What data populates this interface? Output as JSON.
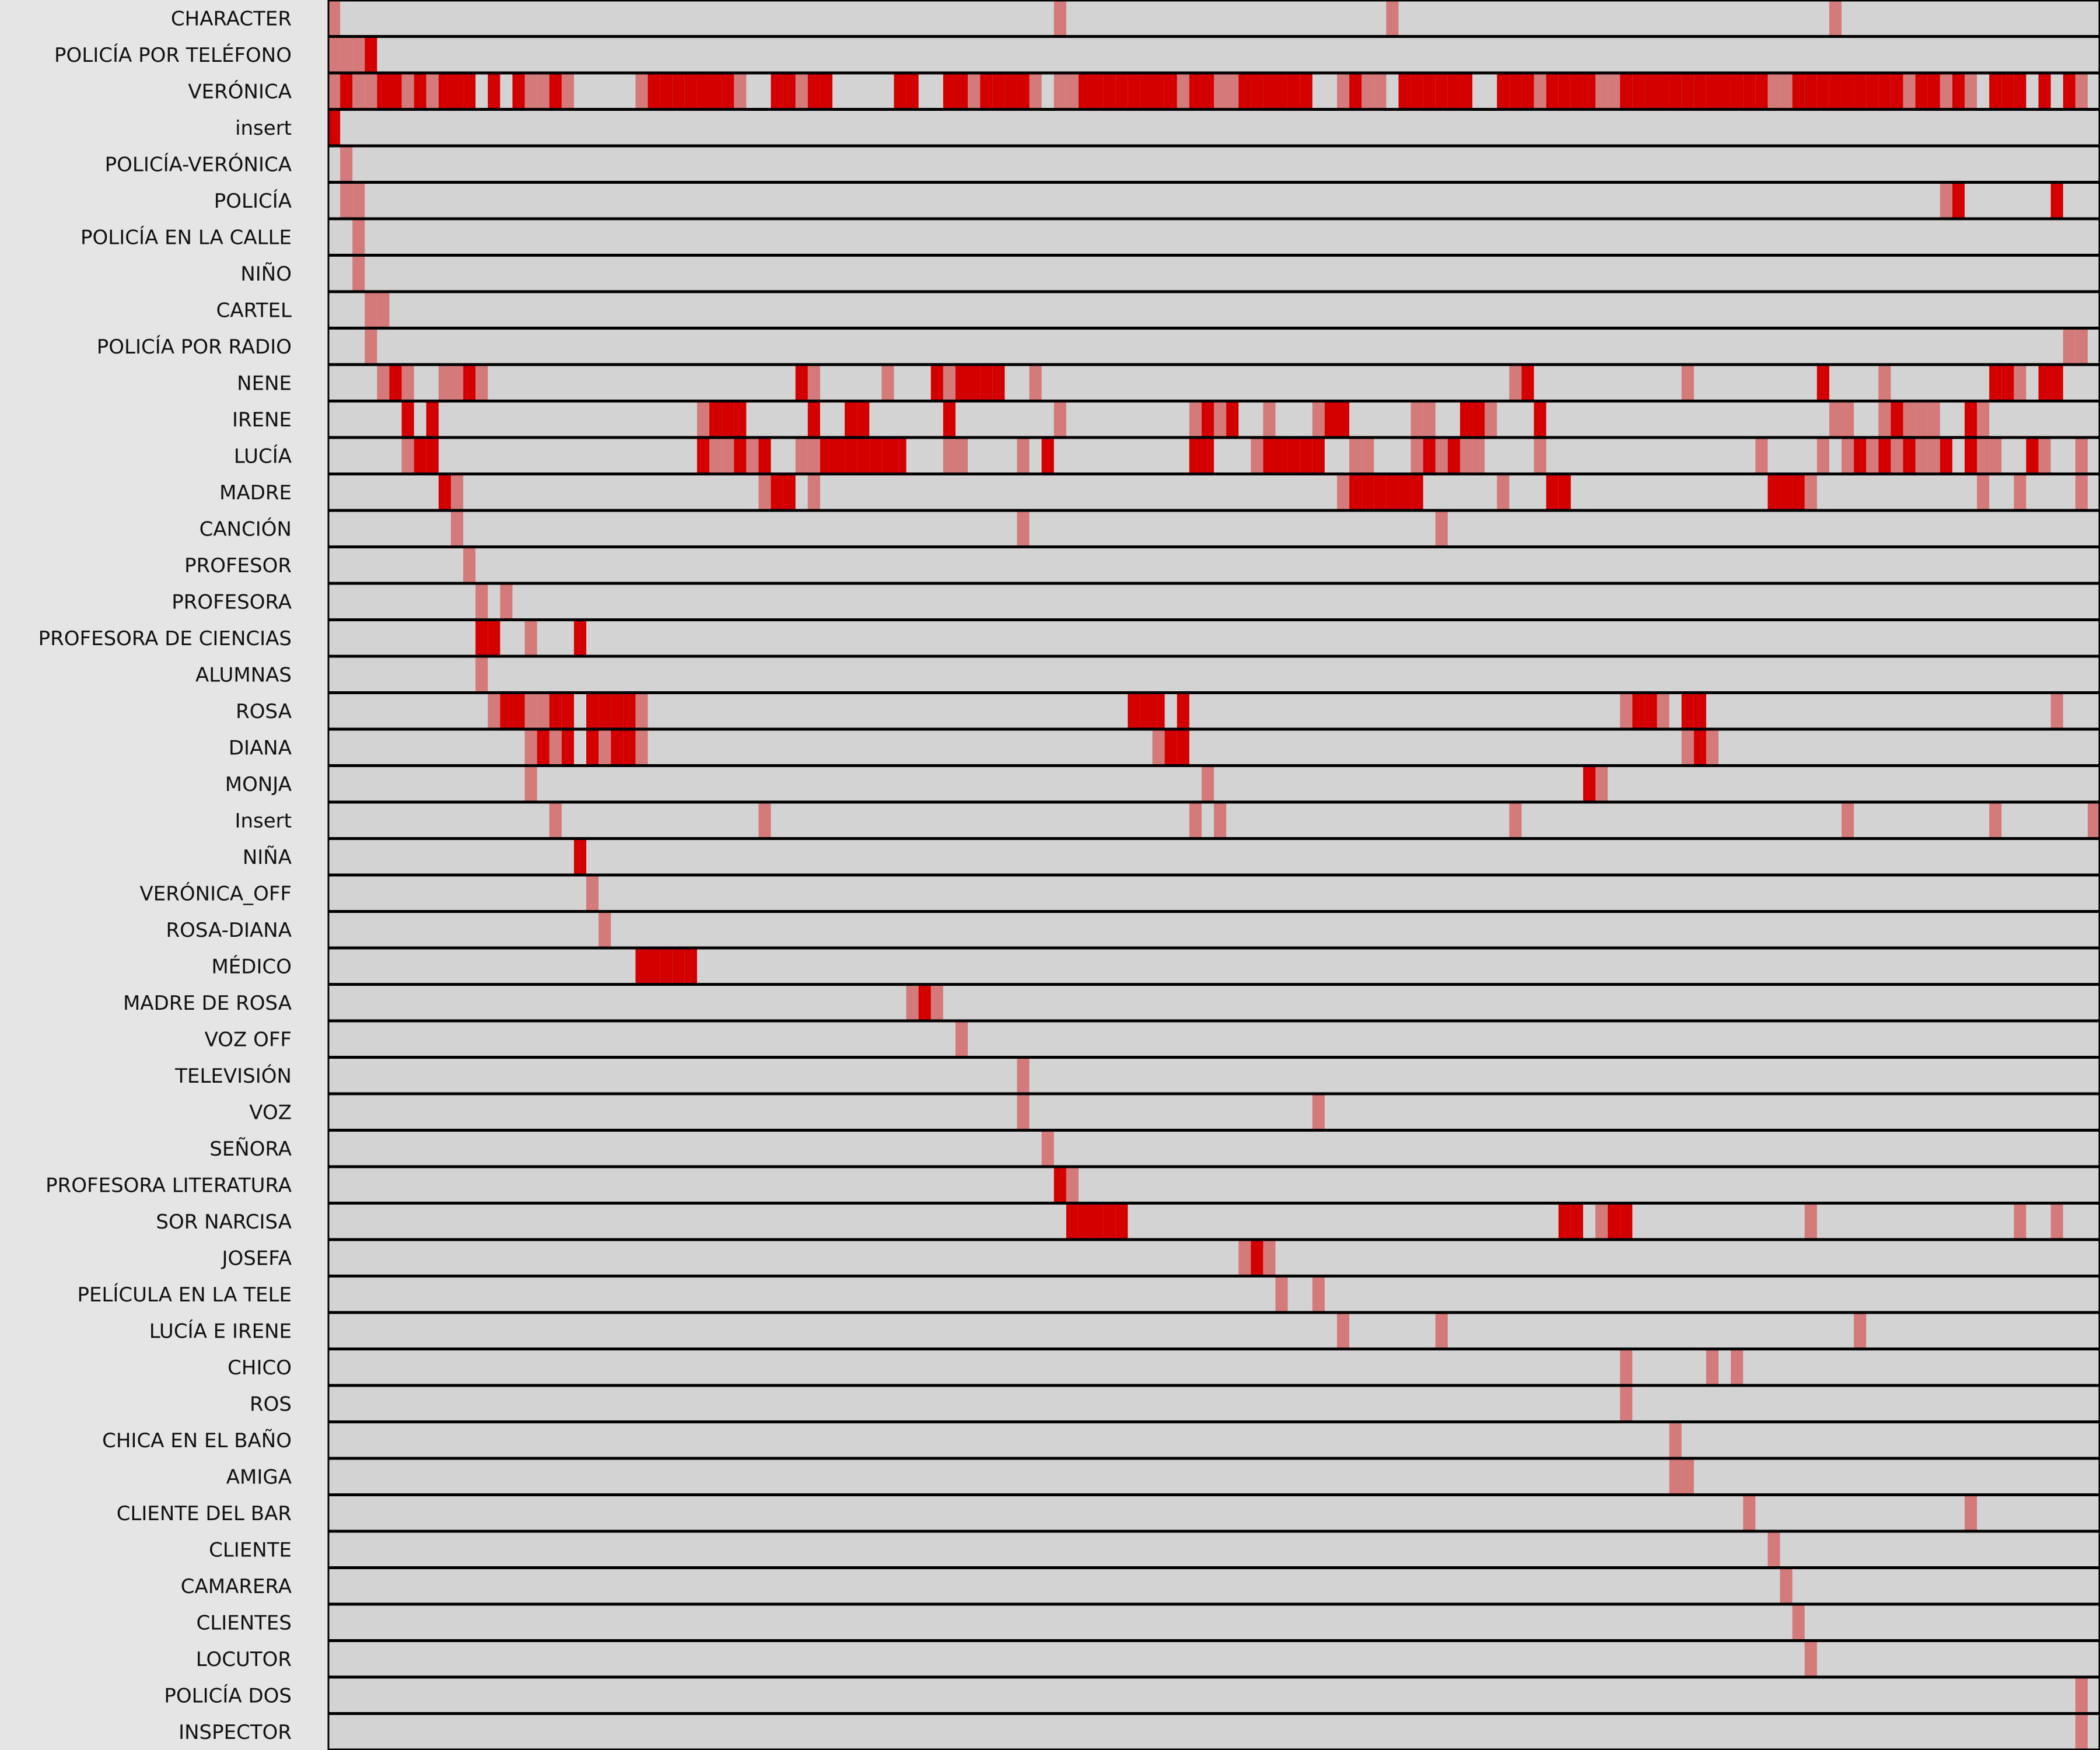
{
  "chart_data": {
    "type": "heatmap",
    "title": "",
    "xlabel": "",
    "ylabel": "",
    "xlim": [
      0,
      143
    ],
    "grid": true,
    "colors": {
      "background": "#e5e5e5",
      "track": "#d3d3d3",
      "present": "#d57a7a",
      "speaking": "#d40000",
      "border": "#000000"
    },
    "series": [
      {
        "name": "CHARACTER",
        "present": [
          0,
          59,
          86,
          122
        ],
        "speaking": []
      },
      {
        "name": "POLICÍA POR TELÉFONO",
        "present": [
          0,
          1,
          2
        ],
        "speaking": [
          3
        ]
      },
      {
        "name": "VERÓNICA",
        "present": [
          0,
          2,
          3,
          6,
          8,
          16,
          17,
          19,
          25,
          33,
          38,
          52,
          57,
          59,
          60,
          69,
          72,
          73,
          82,
          84,
          85,
          98,
          103,
          104,
          117,
          118,
          128,
          131,
          133,
          142
        ],
        "speaking": [
          1,
          4,
          5,
          7,
          9,
          10,
          11,
          13,
          15,
          18,
          26,
          27,
          28,
          29,
          30,
          31,
          32,
          36,
          37,
          39,
          40,
          46,
          47,
          50,
          51,
          53,
          54,
          55,
          56,
          61,
          62,
          63,
          64,
          65,
          66,
          67,
          68,
          70,
          71,
          74,
          75,
          76,
          77,
          78,
          79,
          83,
          87,
          88,
          89,
          90,
          91,
          92,
          95,
          96,
          97,
          99,
          100,
          101,
          102,
          105,
          106,
          107,
          108,
          109,
          110,
          111,
          112,
          113,
          114,
          115,
          116,
          119,
          120,
          121,
          122,
          123,
          124,
          125,
          126,
          127,
          129,
          130,
          132,
          135,
          136,
          137,
          139,
          141
        ]
      },
      {
        "name": "insert",
        "present": [],
        "speaking": [
          0
        ]
      },
      {
        "name": "POLICÍA-VERÓNICA",
        "present": [
          1
        ],
        "speaking": []
      },
      {
        "name": "POLICÍA",
        "present": [
          1,
          2,
          131
        ],
        "speaking": [
          132,
          140
        ]
      },
      {
        "name": "POLICÍA EN LA CALLE",
        "present": [
          2
        ],
        "speaking": []
      },
      {
        "name": "NIÑO",
        "present": [
          2
        ],
        "speaking": []
      },
      {
        "name": "CARTEL",
        "present": [
          3,
          4
        ],
        "speaking": []
      },
      {
        "name": "POLICÍA POR RADIO",
        "present": [
          3,
          141,
          142
        ],
        "speaking": []
      },
      {
        "name": "NENE",
        "present": [
          4,
          6,
          9,
          10,
          12,
          39,
          45,
          50,
          57,
          96,
          110,
          126,
          137
        ],
        "speaking": [
          5,
          11,
          38,
          49,
          51,
          52,
          53,
          54,
          97,
          121,
          135,
          136,
          139,
          140
        ]
      },
      {
        "name": "IRENE",
        "present": [
          30,
          42,
          59,
          70,
          72,
          76,
          80,
          81,
          88,
          89,
          94,
          122,
          123,
          126,
          127,
          128,
          129,
          130,
          134
        ],
        "speaking": [
          6,
          8,
          31,
          32,
          33,
          39,
          42,
          43,
          50,
          71,
          73,
          81,
          82,
          92,
          93,
          98,
          127,
          133
        ]
      },
      {
        "name": "LUCÍA",
        "present": [
          6,
          31,
          32,
          34,
          38,
          39,
          50,
          51,
          56,
          70,
          75,
          83,
          84,
          88,
          90,
          92,
          93,
          98,
          116,
          121,
          123,
          125,
          127,
          129,
          130,
          134,
          135,
          139,
          142
        ],
        "speaking": [
          7,
          8,
          30,
          33,
          35,
          40,
          41,
          42,
          43,
          44,
          45,
          46,
          58,
          70,
          71,
          76,
          77,
          78,
          79,
          80,
          91,
          89,
          124,
          126,
          128,
          131,
          133,
          138
        ]
      },
      {
        "name": "MADRE",
        "present": [
          10,
          35,
          39,
          82,
          95,
          120,
          134,
          137,
          142
        ],
        "speaking": [
          9,
          36,
          37,
          83,
          84,
          85,
          86,
          87,
          88,
          99,
          100,
          117,
          118,
          119
        ]
      },
      {
        "name": "CANCIÓN",
        "present": [
          10,
          56,
          90
        ],
        "speaking": []
      },
      {
        "name": "PROFESOR",
        "present": [
          11
        ],
        "speaking": []
      },
      {
        "name": "PROFESORA",
        "present": [
          12,
          14
        ],
        "speaking": []
      },
      {
        "name": "PROFESORA DE CIENCIAS",
        "present": [
          16
        ],
        "speaking": [
          12,
          13,
          20
        ]
      },
      {
        "name": "ALUMNAS",
        "present": [
          12
        ],
        "speaking": []
      },
      {
        "name": "ROSA",
        "present": [
          13,
          16,
          17,
          25,
          105,
          108,
          140
        ],
        "speaking": [
          14,
          15,
          18,
          19,
          21,
          22,
          23,
          24,
          65,
          66,
          67,
          69,
          106,
          107,
          110,
          111
        ]
      },
      {
        "name": "DIANA",
        "present": [
          16,
          18,
          22,
          25,
          67,
          110,
          112
        ],
        "speaking": [
          17,
          19,
          21,
          23,
          24,
          68,
          69,
          111
        ]
      },
      {
        "name": "MONJA",
        "present": [
          16,
          71,
          103
        ],
        "speaking": [
          102
        ]
      },
      {
        "name": "Insert",
        "present": [
          18,
          35,
          70,
          72,
          96,
          123,
          135,
          143
        ],
        "speaking": []
      },
      {
        "name": "NIÑA",
        "present": [],
        "speaking": [
          20
        ]
      },
      {
        "name": "VERÓNICA_OFF",
        "present": [
          21
        ],
        "speaking": []
      },
      {
        "name": "ROSA-DIANA",
        "present": [
          22
        ],
        "speaking": []
      },
      {
        "name": "MÉDICO",
        "present": [],
        "speaking": [
          25,
          26,
          27,
          28,
          29
        ]
      },
      {
        "name": "MADRE DE ROSA",
        "present": [
          47,
          49
        ],
        "speaking": [
          48
        ]
      },
      {
        "name": "VOZ OFF",
        "present": [
          51
        ],
        "speaking": []
      },
      {
        "name": "TELEVISIÓN",
        "present": [
          56
        ],
        "speaking": []
      },
      {
        "name": "VOZ",
        "present": [
          56,
          80
        ],
        "speaking": []
      },
      {
        "name": "SEÑORA",
        "present": [
          58
        ],
        "speaking": []
      },
      {
        "name": "PROFESORA LITERATURA",
        "present": [
          60
        ],
        "speaking": [
          59
        ]
      },
      {
        "name": "SOR NARCISA",
        "present": [
          103,
          120,
          137,
          140
        ],
        "speaking": [
          60,
          61,
          62,
          63,
          64,
          100,
          101,
          104,
          105
        ]
      },
      {
        "name": "JOSEFA",
        "present": [
          74,
          76
        ],
        "speaking": [
          75
        ]
      },
      {
        "name": "PELÍCULA EN LA TELE",
        "present": [
          77,
          80
        ],
        "speaking": []
      },
      {
        "name": "LUCÍA E IRENE",
        "present": [
          82,
          90,
          124
        ],
        "speaking": []
      },
      {
        "name": "CHICO",
        "present": [
          105,
          112,
          114
        ],
        "speaking": []
      },
      {
        "name": "ROS",
        "present": [
          105
        ],
        "speaking": []
      },
      {
        "name": "CHICA EN EL BAÑO",
        "present": [
          109
        ],
        "speaking": []
      },
      {
        "name": "AMIGA",
        "present": [
          109,
          110
        ],
        "speaking": []
      },
      {
        "name": "CLIENTE DEL BAR",
        "present": [
          115,
          133
        ],
        "speaking": []
      },
      {
        "name": "CLIENTE",
        "present": [
          117
        ],
        "speaking": []
      },
      {
        "name": "CAMARERA",
        "present": [
          118
        ],
        "speaking": []
      },
      {
        "name": "CLIENTES",
        "present": [
          119
        ],
        "speaking": []
      },
      {
        "name": "LOCUTOR",
        "present": [
          120
        ],
        "speaking": []
      },
      {
        "name": "POLICÍA DOS",
        "present": [
          142
        ],
        "speaking": []
      },
      {
        "name": "INSPECTOR",
        "present": [
          142
        ],
        "speaking": []
      }
    ]
  }
}
